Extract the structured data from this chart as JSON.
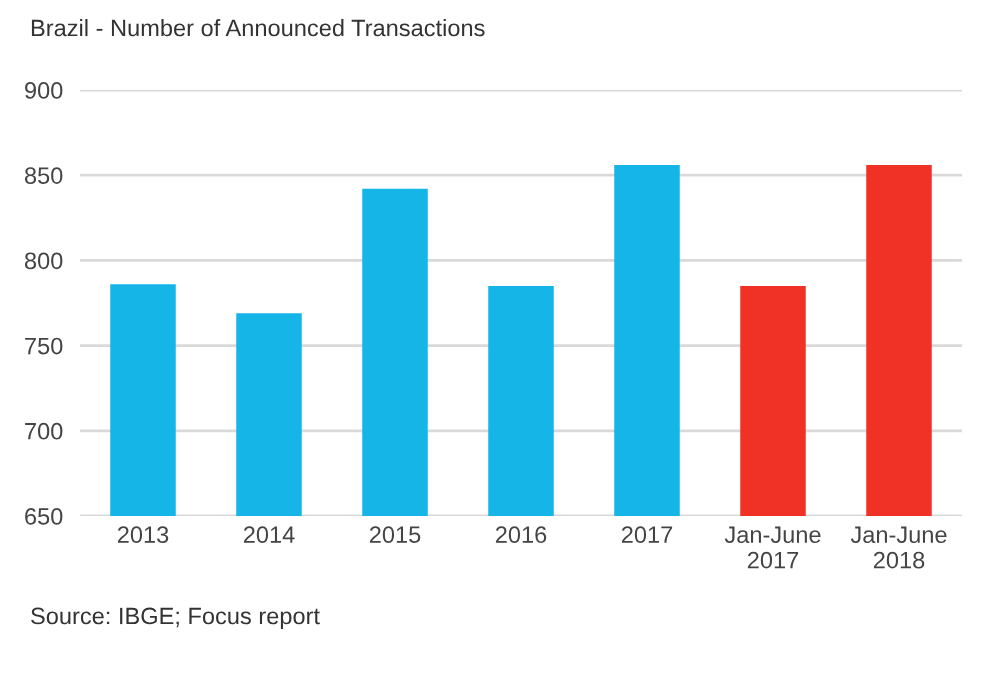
{
  "chart_data": {
    "type": "bar",
    "title": "Brazil - Number of Announced Transactions",
    "categories": [
      "2013",
      "2014",
      "2015",
      "2016",
      "2017",
      "Jan-June\n2017",
      "Jan-June\n2018"
    ],
    "values": [
      786,
      769,
      842,
      785,
      856,
      785,
      856
    ],
    "colors": [
      "#16b5e8",
      "#16b5e8",
      "#16b5e8",
      "#16b5e8",
      "#16b5e8",
      "#ef3225",
      "#ef3225"
    ],
    "ylim": [
      650,
      900
    ],
    "yticks": [
      650,
      700,
      750,
      800,
      850,
      900
    ],
    "grid": "y",
    "annotations": [
      "Source: IBGE; Focus report"
    ]
  }
}
